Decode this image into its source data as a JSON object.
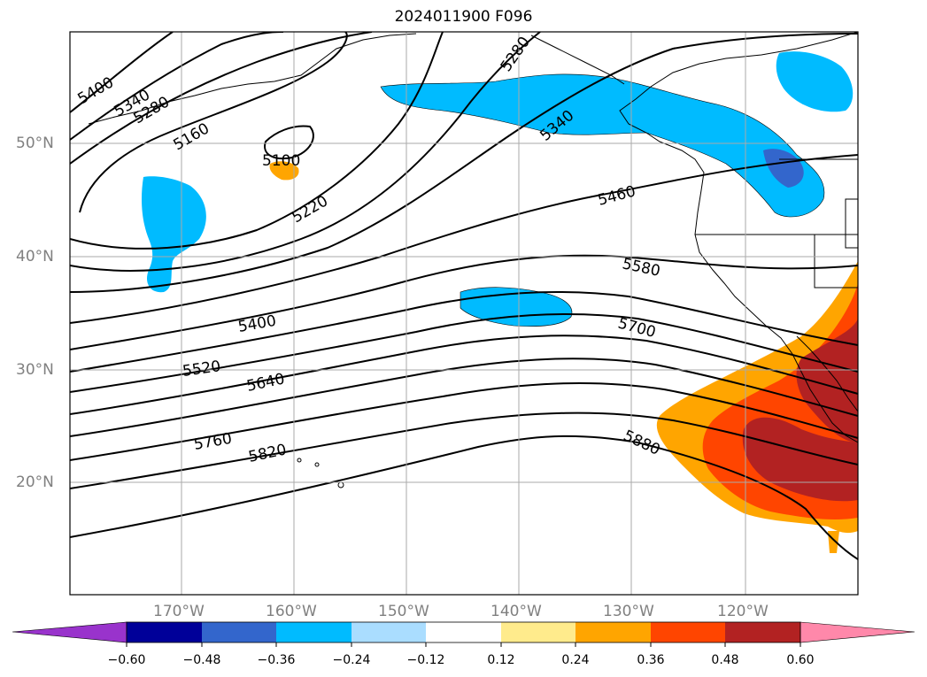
{
  "title": "2024011900 F096",
  "lat_labels": [
    "50°N",
    "40°N",
    "30°N",
    "20°N"
  ],
  "lon_labels": [
    "170°W",
    "160°W",
    "150°W",
    "140°W",
    "130°W",
    "120°W"
  ],
  "contour_labels": [
    "5400",
    "5340",
    "5280",
    "5160",
    "5100",
    "5220",
    "5280",
    "5340",
    "5460",
    "5580",
    "5700",
    "5880",
    "5400",
    "5520",
    "5640",
    "5760",
    "5820"
  ],
  "colorbar": {
    "ticks": [
      "−0.60",
      "−0.48",
      "−0.36",
      "−0.24",
      "−0.12",
      "0.12",
      "0.24",
      "0.36",
      "0.48",
      "0.60"
    ],
    "colors": [
      "#9933cc",
      "#000099",
      "#3366cc",
      "#00bbff",
      "#aaddff",
      "#ffffff",
      "#ffeb8c",
      "#ffa500",
      "#ff4500",
      "#b22222",
      "#ff88aa"
    ]
  }
}
